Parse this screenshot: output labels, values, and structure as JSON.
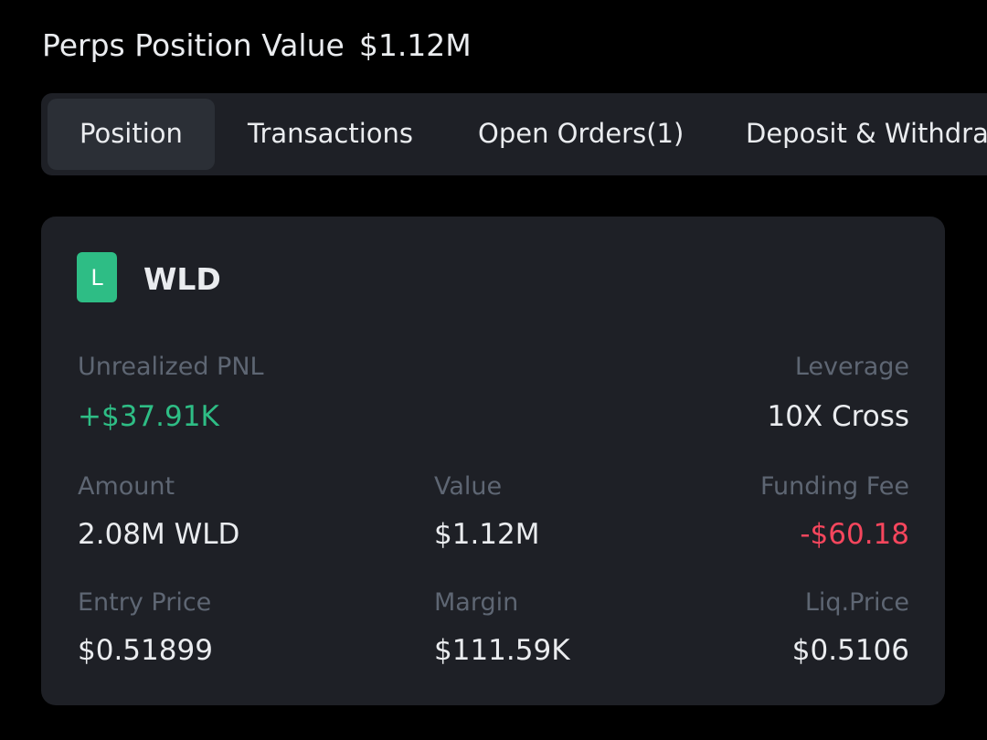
{
  "header": {
    "title": "Perps Position Value",
    "value": "$1.12M"
  },
  "tabs": [
    "Position",
    "Transactions",
    "Open Orders(1)",
    "Deposit & Withdraw"
  ],
  "position": {
    "badge": "L",
    "symbol": "WLD",
    "fields": [
      {
        "label": "Unrealized PNL",
        "value": "+$37.91K"
      },
      {
        "label": "Leverage",
        "value": "10X Cross"
      },
      {
        "label": "Amount",
        "value": "2.08M WLD"
      },
      {
        "label": "Value",
        "value": "$1.12M"
      },
      {
        "label": "Funding Fee",
        "value": "-$60.18"
      },
      {
        "label": "Entry Price",
        "value": "$0.51899"
      },
      {
        "label": "Margin",
        "value": "$111.59K"
      },
      {
        "label": "Liq.Price",
        "value": "$0.5106"
      }
    ]
  }
}
